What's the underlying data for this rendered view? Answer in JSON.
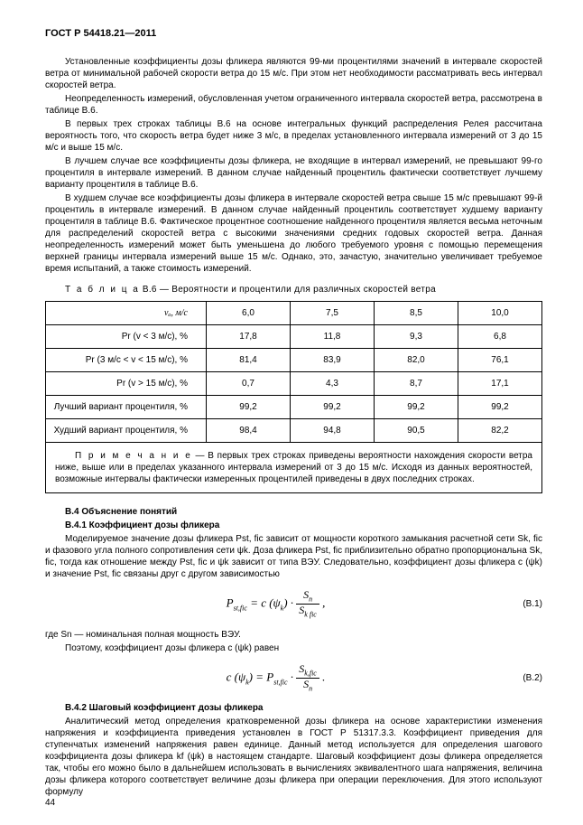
{
  "header": "ГОСТ Р 54418.21—2011",
  "p1": "Установленные коэффициенты дозы фликера являются 99-ми процентилями значений в интервале скоростей ветра от минимальной рабочей скорости ветра до 15 м/с. При этом нет необходимости рассматривать весь интервал скоростей ветра.",
  "p2": "Неопределенность измерений, обусловленная учетом ограниченного интервала скоростей ветра, рассмотрена в таблице В.6.",
  "p3": "В первых трех строках таблицы В.6 на основе интегральных функций распределения Релея рассчитана вероятность того, что скорость ветра будет ниже 3 м/с, в пределах установленного интервала измерений от 3 до 15 м/с и выше 15 м/с.",
  "p4": "В лучшем случае все коэффициенты дозы фликера, не входящие в интервал измерений, не превышают 99-го процентиля в интервале измерений. В данном случае найденный процентиль фактически соответствует лучшему варианту процентиля в таблице В.6.",
  "p5": "В худшем случае все коэффициенты дозы фликера в интервале скоростей ветра свыше 15 м/с превышают 99-й процентиль в интервале измерений. В данном случае найденный процентиль соответствует худшему варианту процентиля в таблице В.6. Фактическое процентное соотношение найденного процентиля является весьма неточным для распределений скоростей ветра с высокими значениями средних годовых скоростей ветра. Данная неопределенность измерений может быть уменьшена до любого требуемого уровня с помощью перемещения верхней границы интервала измерений выше 15 м/с. Однако, это, зачастую, значительно увеличивает требуемое время испытаний, а также стоимость измерений.",
  "table_caption_spaced": "Т а б л и ц а",
  "table_caption_rest": " В.6 — Вероятности и процентили для различных скоростей ветра",
  "table": {
    "rows": [
      {
        "label": "vₐ, м/с",
        "c1": "6,0",
        "c2": "7,5",
        "c3": "8,5",
        "c4": "10,0",
        "ital_label": true
      },
      {
        "label": "Pr (v < 3 м/с), %",
        "c1": "17,8",
        "c2": "11,8",
        "c3": "9,3",
        "c4": "6,8"
      },
      {
        "label": "Pr (3 м/с < v < 15 м/с), %",
        "c1": "81,4",
        "c2": "83,9",
        "c3": "82,0",
        "c4": "76,1"
      },
      {
        "label": "Pr (v > 15 м/с), %",
        "c1": "0,7",
        "c2": "4,3",
        "c3": "8,7",
        "c4": "17,1"
      },
      {
        "label": "Лучший вариант процентиля, %",
        "c1": "99,2",
        "c2": "99,2",
        "c3": "99,2",
        "c4": "99,2"
      },
      {
        "label": "Худший вариант процентиля, %",
        "c1": "98,4",
        "c2": "94,8",
        "c3": "90,5",
        "c4": "82,2"
      }
    ]
  },
  "note_spaced": "П р и м е ч а н и е",
  "note_rest": " — В первых трех строках приведены вероятности нахождения скорости ветра ниже, выше или в пределах указанного интервала измерений от 3 до 15 м/с. Исходя из данных вероятностей, возможные интервалы фактически измеренных процентилей приведены в двух последних строках.",
  "sec_b4": "В.4 Объяснение понятий",
  "sec_b41": "В.4.1   Коэффициент дозы фликера",
  "p_b41": "Моделируемое значение дозы фликера Pst, fic зависит от мощности короткого замыкания расчетной сети Sk, fic и фазового угла полного сопротивления сети ψk. Доза фликера Pst, fic приблизительно обратно пропорциональна Sk, fic, тогда как отношение между Pst, fic и ψk зависит от типа ВЭУ. Следовательно, коэффициент дозы фликера c (ψk) и значение Pst, fic связаны друг с другом зависимостью",
  "eq1_num": "(В.1)",
  "p_sn": "где Sn — номинальная полная мощность ВЭУ.",
  "p_coef": "Поэтому, коэффициент дозы фликера c (ψk) равен",
  "eq2_num": "(В.2)",
  "sec_b42": "В.4.2 Шаговый коэффициент дозы фликера",
  "p_b42": "Аналитический метод определения кратковременной дозы фликера на основе характеристики изменения напряжения и коэффициента приведения установлен в ГОСТ Р 51317.3.3. Коэффициент приведения для ступенчатых изменений напряжения равен единице. Данный метод используется для определения шагового коэффициента дозы фликера kf (ψk) в настоящем стандарте. Шаговый коэффициент дозы фликера определяется так, чтобы его можно было в дальнейшем использовать в вычислениях эквивалентного шага напряжения, величина дозы фликера которого соответствует величине дозы фликера при операции переключения. Для этого используют формулу",
  "pagenum": "44"
}
